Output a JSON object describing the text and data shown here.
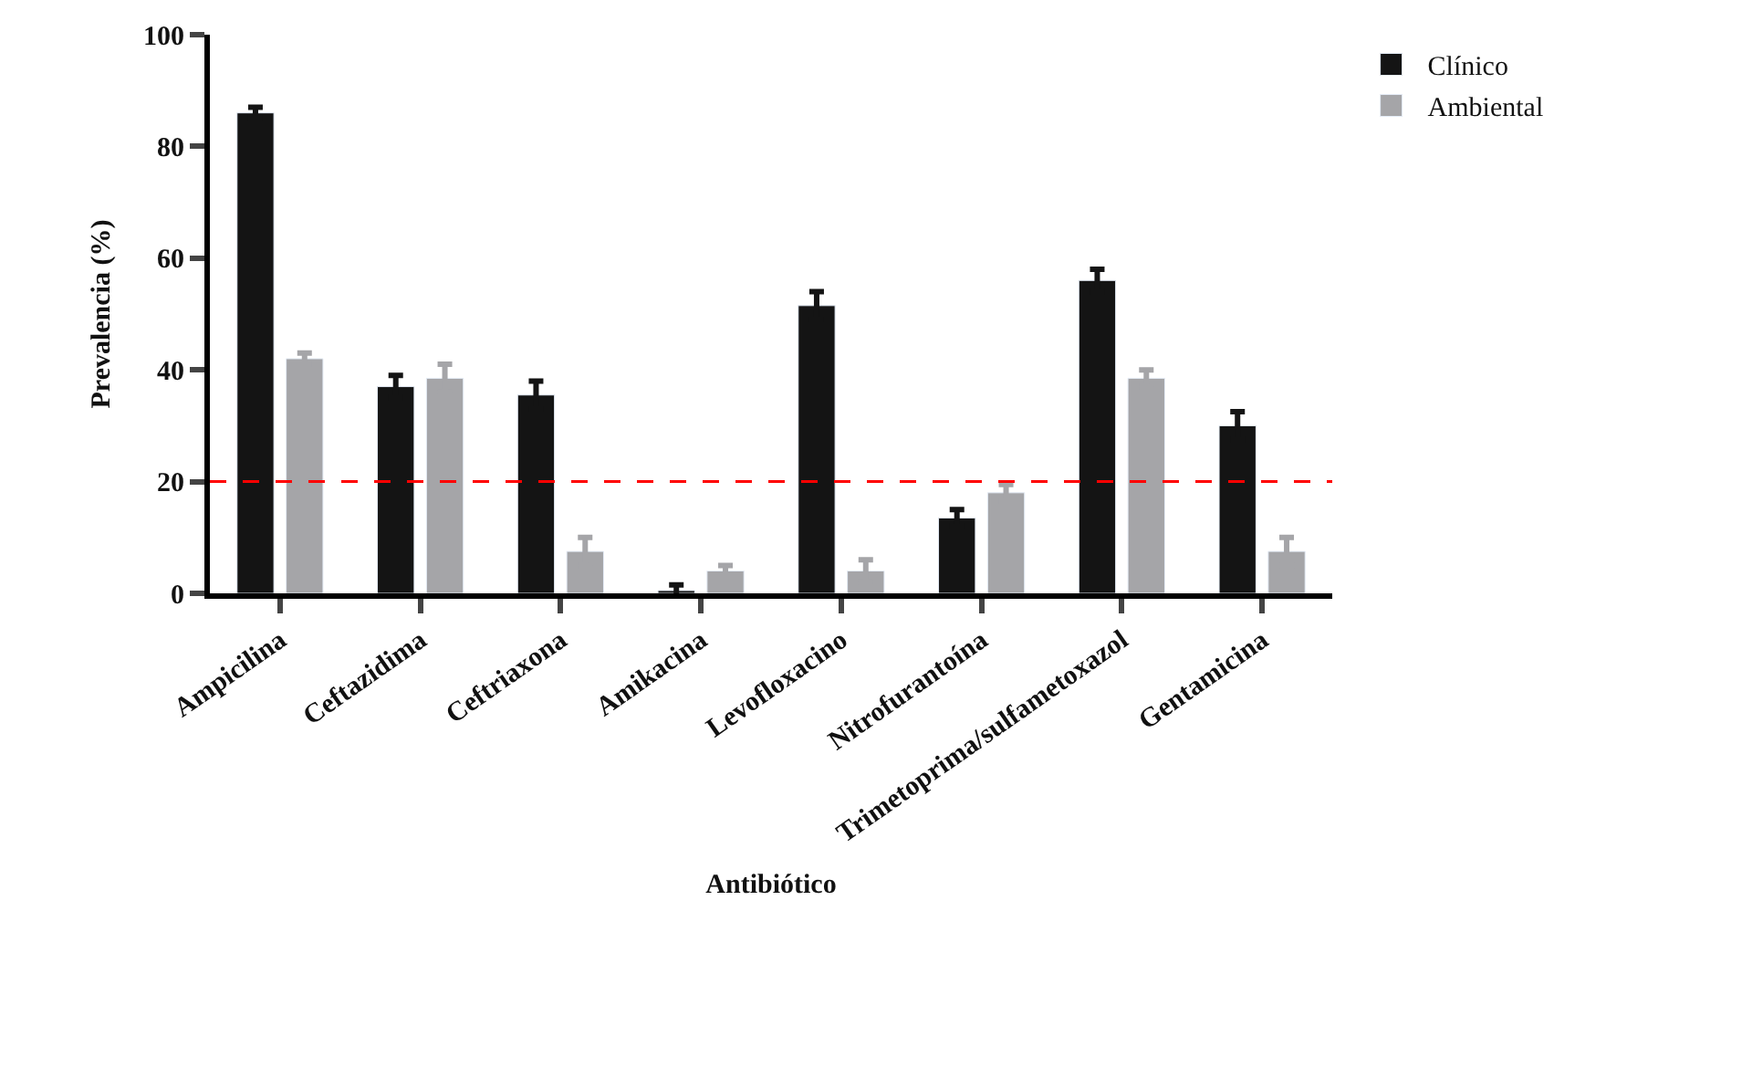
{
  "chart_data": {
    "type": "bar",
    "xlabel": "Antibiótico",
    "ylabel": "Prevalencia (%)",
    "categories": [
      "Ampicilina",
      "Ceftazidima",
      "Ceftriaxona",
      "Amikacina",
      "Levofloxacino",
      "Nitrofurantoína",
      "Trimetoprima/sulfametoxazol",
      "Gentamicina"
    ],
    "series": [
      {
        "name": "Clínico",
        "color": "#141414",
        "values": [
          86,
          37,
          35.5,
          0.5,
          51.5,
          13.5,
          56,
          30
        ],
        "errors": [
          1,
          2,
          2.5,
          1,
          2.5,
          1.5,
          2,
          2.5
        ]
      },
      {
        "name": "Ambiental",
        "color": "#a5a5a8",
        "values": [
          42,
          38.5,
          7.5,
          4,
          4,
          18,
          38.5,
          7.5
        ],
        "errors": [
          1,
          2.5,
          2.5,
          1,
          2,
          1.5,
          1.5,
          2.5
        ]
      }
    ],
    "ylim": [
      0,
      100
    ],
    "yticks": [
      0,
      20,
      40,
      60,
      80,
      100
    ],
    "ref_lines": [
      {
        "axis": "y",
        "value": 20,
        "color": "#ff0000",
        "line_style": "dashed"
      }
    ],
    "legend": "top right"
  }
}
